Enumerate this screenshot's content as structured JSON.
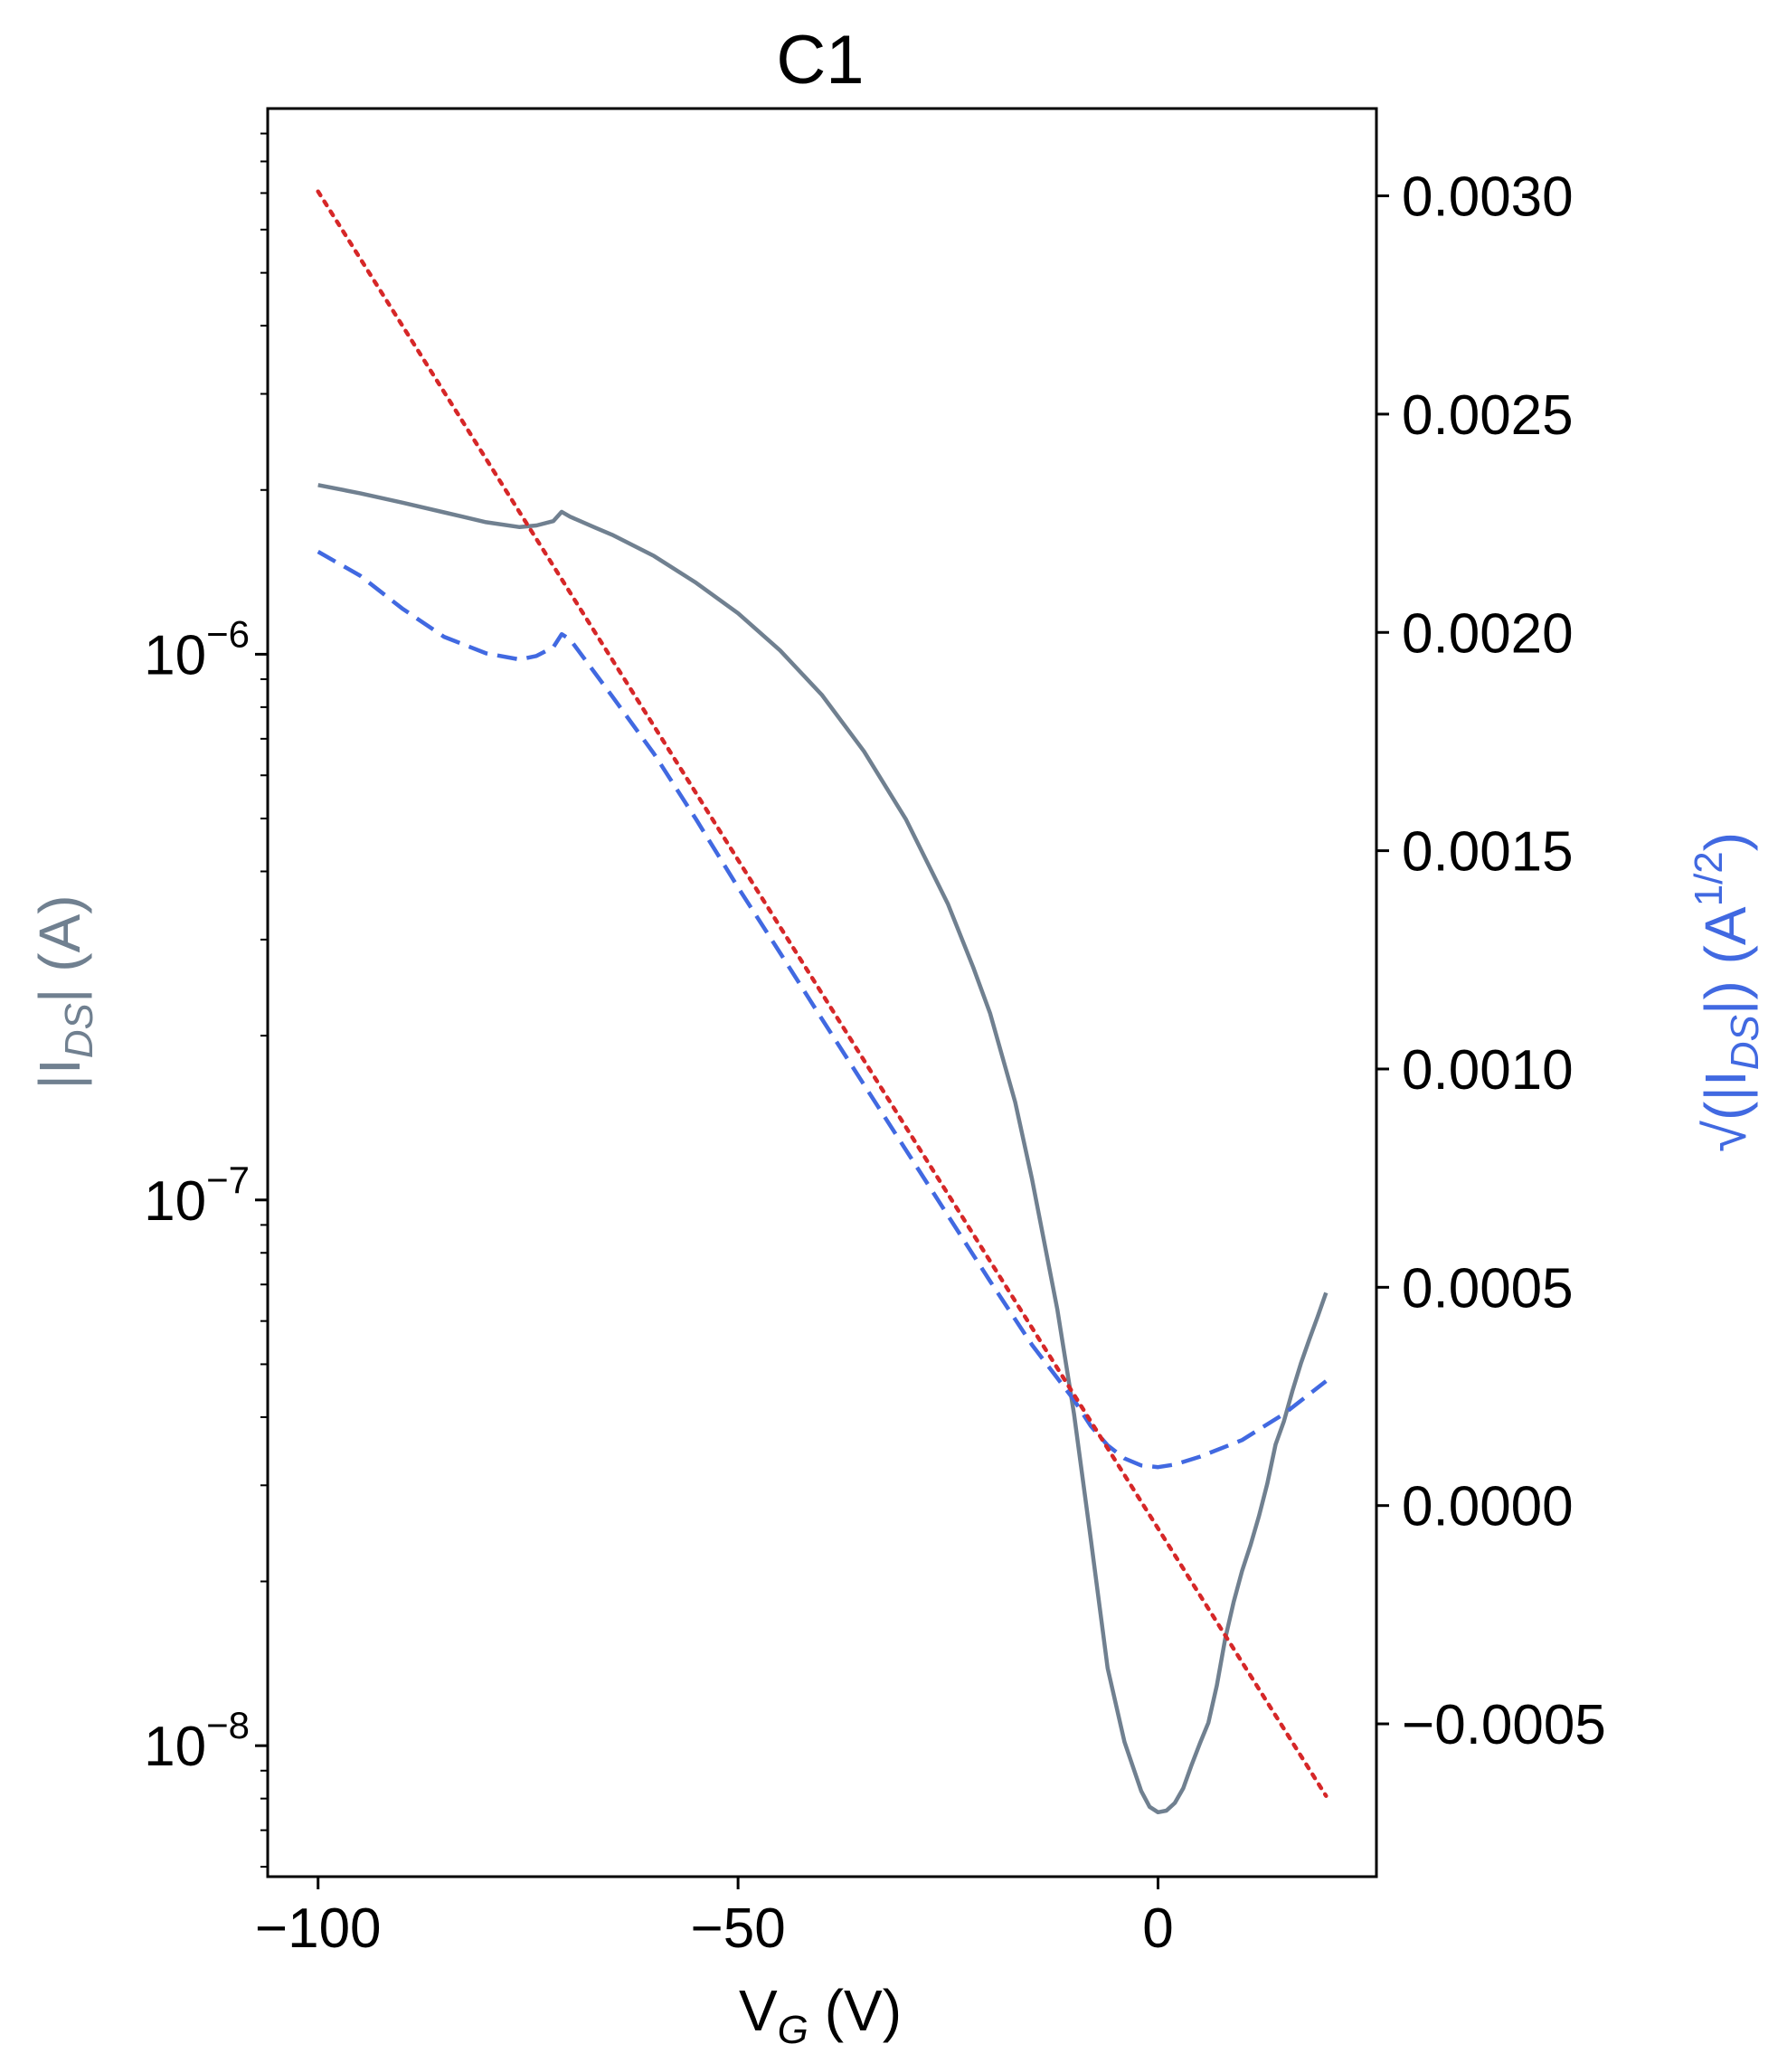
{
  "chart_data": {
    "type": "line",
    "title": "C1",
    "xlabel": {
      "main": "V",
      "sub": "G",
      "unit": " (V)"
    },
    "ylabel_left": {
      "pre": "|I",
      "sub": "DS",
      "post": "| (A)"
    },
    "ylabel_right": {
      "radical": "√",
      "inner_pre": "(|I",
      "sub": "DS",
      "inner_post": "|)",
      "unit_pre": " (A",
      "unit_sup": "1/2",
      "unit_post": ")"
    },
    "xlim": [
      -106,
      26
    ],
    "ylim_left_log10": [
      -8.24,
      -5.0
    ],
    "ylim_right": [
      -0.00085,
      0.0032
    ],
    "x_ticks": [
      {
        "value": -100,
        "label": "−100"
      },
      {
        "value": -50,
        "label": "−50"
      },
      {
        "value": 0,
        "label": "0"
      }
    ],
    "y_left_major_ticks": [
      {
        "exp": -6,
        "base": "10",
        "sup": "−6"
      },
      {
        "exp": -7,
        "base": "10",
        "sup": "−7"
      },
      {
        "exp": -8,
        "base": "10",
        "sup": "−8"
      }
    ],
    "y_right_ticks": [
      {
        "value": 0.003,
        "label": "0.0030"
      },
      {
        "value": 0.0025,
        "label": "0.0025"
      },
      {
        "value": 0.002,
        "label": "0.0020"
      },
      {
        "value": 0.0015,
        "label": "0.0015"
      },
      {
        "value": 0.001,
        "label": "0.0010"
      },
      {
        "value": 0.0005,
        "label": "0.0005"
      },
      {
        "value": 0.0,
        "label": "0.0000"
      },
      {
        "value": -0.0005,
        "label": "−0.0005"
      }
    ],
    "colors": {
      "ids": "#708090",
      "sqrt": "#4169e1",
      "fit": "#d62728",
      "axes": "#000000"
    },
    "series": [
      {
        "name": "|I_DS|",
        "axis": "left",
        "style": "solid",
        "x": [
          -100,
          -95,
          -90,
          -85,
          -80,
          -76,
          -74,
          -72,
          -71,
          -70,
          -67,
          -65,
          -60,
          -55,
          -50,
          -45,
          -40,
          -35,
          -30,
          -25,
          -22,
          -20,
          -17,
          -15,
          -12,
          -10,
          -8,
          -6,
          -4,
          -2,
          -1,
          0,
          1,
          2,
          3,
          4,
          5,
          6,
          7,
          8,
          9,
          10,
          11,
          12,
          13,
          14,
          15,
          16,
          17,
          18,
          19,
          20
        ],
        "log10_y": [
          -5.69,
          -5.705,
          -5.722,
          -5.74,
          -5.758,
          -5.767,
          -5.764,
          -5.756,
          -5.739,
          -5.748,
          -5.768,
          -5.781,
          -5.82,
          -5.869,
          -5.925,
          -5.993,
          -6.075,
          -6.178,
          -6.303,
          -6.458,
          -6.574,
          -6.658,
          -6.821,
          -6.962,
          -7.2,
          -7.392,
          -7.622,
          -7.858,
          -7.993,
          -8.083,
          -8.112,
          -8.122,
          -8.119,
          -8.105,
          -8.078,
          -8.035,
          -7.995,
          -7.958,
          -7.89,
          -7.804,
          -7.737,
          -7.68,
          -7.633,
          -7.58,
          -7.52,
          -7.448,
          -7.405,
          -7.35,
          -7.3,
          -7.256,
          -7.214,
          -7.17
        ]
      },
      {
        "name": "sqrt(|I_DS|)",
        "axis": "right",
        "style": "dashed",
        "x": [
          -100,
          -95,
          -90,
          -85,
          -80,
          -76,
          -74,
          -72,
          -71,
          -70,
          -65,
          -60,
          -55,
          -50,
          -45,
          -40,
          -35,
          -30,
          -25,
          -20,
          -15,
          -10,
          -8,
          -6,
          -4,
          -2,
          0,
          2,
          5,
          10,
          15,
          20
        ],
        "y": [
          0.002185,
          0.00213,
          0.002055,
          0.00199,
          0.001952,
          0.001938,
          0.001946,
          0.001966,
          0.001996,
          0.001984,
          0.001854,
          0.001722,
          0.001572,
          0.001416,
          0.001266,
          0.001114,
          0.000964,
          0.000814,
          0.000664,
          0.000514,
          0.000368,
          0.000242,
          0.000182,
          0.000138,
          0.000108,
          9.2e-05,
          8.8e-05,
          9.4e-05,
          0.000112,
          0.00015,
          0.00021,
          0.000285
        ]
      },
      {
        "name": "linear fit",
        "axis": "right",
        "style": "dotted",
        "x": [
          -100,
          20
        ],
        "y": [
          0.00301,
          -0.000665
        ]
      }
    ]
  }
}
